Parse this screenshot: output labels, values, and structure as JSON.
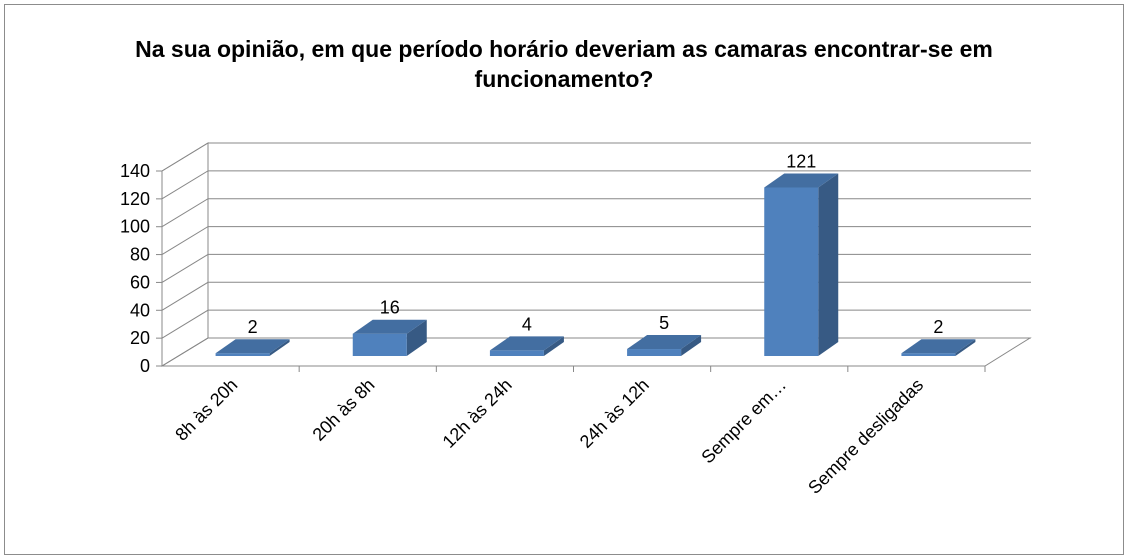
{
  "chart_data": {
    "type": "bar3d",
    "title": "Na sua opinião, em que período horário deveriam as camaras encontrar-se em funcionamento?",
    "categories": [
      "8h às 20h",
      "20h às 8h",
      "12h às 24h",
      "24h às 12h",
      "Sempre em…",
      "Sempre desligadas"
    ],
    "values": [
      2,
      16,
      4,
      5,
      121,
      2
    ],
    "color": "#4f81bd",
    "ylim": [
      0,
      140
    ],
    "yticks": [
      0,
      20,
      40,
      60,
      80,
      100,
      120,
      140
    ],
    "grid": true
  }
}
